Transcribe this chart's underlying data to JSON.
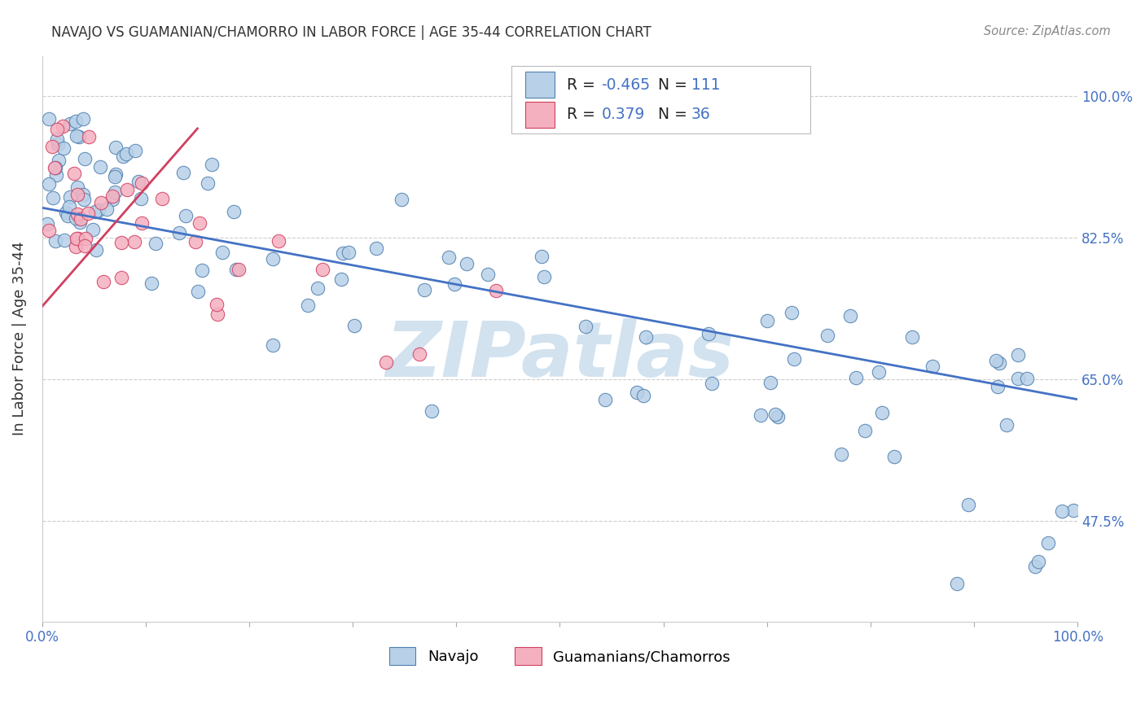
{
  "title": "NAVAJO VS GUAMANIAN/CHAMORRO IN LABOR FORCE | AGE 35-44 CORRELATION CHART",
  "source": "Source: ZipAtlas.com",
  "ylabel": "In Labor Force | Age 35-44",
  "xlim": [
    0.0,
    1.0
  ],
  "ylim": [
    0.35,
    1.05
  ],
  "x_tick_pos": [
    0.0,
    0.1,
    0.2,
    0.3,
    0.4,
    0.5,
    0.6,
    0.7,
    0.8,
    0.9,
    1.0
  ],
  "x_tick_labels": [
    "0.0%",
    "",
    "",
    "",
    "",
    "",
    "",
    "",
    "",
    "",
    "100.0%"
  ],
  "y_ticks": [
    0.475,
    0.65,
    0.825,
    1.0
  ],
  "y_tick_labels": [
    "47.5%",
    "65.0%",
    "82.5%",
    "100.0%"
  ],
  "navajo_color": "#b8d0e8",
  "guam_color": "#f5b0c0",
  "navajo_edge": "#5080b0",
  "guam_edge": "#d04060",
  "trend_navajo_color": "#4472c4",
  "trend_guam_color": "#d04060",
  "R_navajo": -0.465,
  "N_navajo": 111,
  "R_guam": 0.379,
  "N_guam": 36,
  "watermark": "ZIPatlas",
  "watermark_color": "#90b8d8",
  "legend_navajo": "Navajo",
  "legend_guam": "Guamanians/Chamorros",
  "nav_trend_x0": 0.0,
  "nav_trend_y0": 0.862,
  "nav_trend_x1": 1.0,
  "nav_trend_y1": 0.625,
  "gua_trend_x0": 0.0,
  "gua_trend_y0": 0.74,
  "gua_trend_x1": 0.15,
  "gua_trend_y1": 0.96
}
